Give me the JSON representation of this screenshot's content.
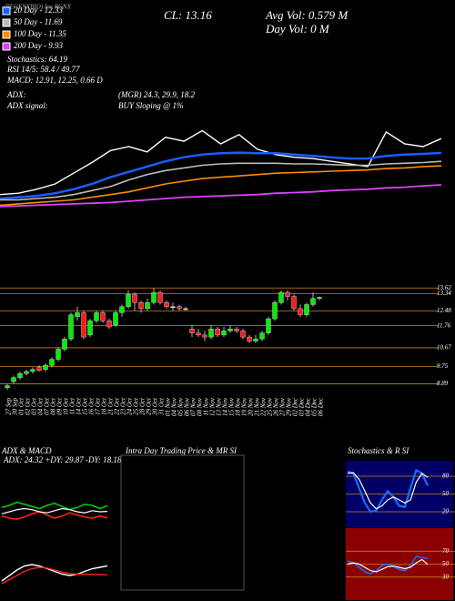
{
  "chart_data": [
    {
      "type": "line",
      "title": "(REGENXBIO) Inc RGNX",
      "annotations": [
        "CL: 13.16",
        "Avg Vol: 0.579 M",
        "Day Vol: 0  M",
        "Stochastics: 64.19",
        "RSI 14/5: 58.4 / 49.77",
        "MACD: 12.91, 12.25, 0.66  D",
        "ADX:",
        "(MGR) 24.3, 29.9, 18.2",
        "ADX signal:",
        "BUY Sloping @ 1%"
      ],
      "price_line": {
        "color": "#ffffff",
        "values": [
          9.2,
          9.3,
          9.6,
          10.0,
          10.8,
          11.6,
          12.5,
          12.8,
          12.4,
          13.5,
          13.2,
          14.0,
          13.0,
          13.7,
          12.6,
          12.2,
          12.0,
          11.9,
          11.7,
          11.5,
          11.3,
          13.9,
          13.0,
          12.8,
          13.4
        ]
      },
      "series": [
        {
          "name": "20 Day - 12.33",
          "color": "#1a5cff",
          "values": [
            8.9,
            9.0,
            9.1,
            9.3,
            9.6,
            10.0,
            10.5,
            10.9,
            11.3,
            11.7,
            12.0,
            12.2,
            12.3,
            12.35,
            12.3,
            12.3,
            12.2,
            12.1,
            12.0,
            11.9,
            11.9,
            12.1,
            12.2,
            12.25,
            12.33
          ]
        },
        {
          "name": "50 Day - 11.69",
          "color": "#bbbbbb",
          "values": [
            8.8,
            8.8,
            8.9,
            9.0,
            9.2,
            9.5,
            9.8,
            10.3,
            10.7,
            11.0,
            11.2,
            11.4,
            11.5,
            11.55,
            11.55,
            11.55,
            11.5,
            11.5,
            11.45,
            11.4,
            11.4,
            11.5,
            11.55,
            11.6,
            11.69
          ]
        },
        {
          "name": "100 Day - 11.35",
          "color": "#ff8c00",
          "values": [
            8.4,
            8.5,
            8.6,
            8.7,
            8.8,
            9.0,
            9.2,
            9.4,
            9.7,
            10.0,
            10.2,
            10.4,
            10.5,
            10.6,
            10.7,
            10.8,
            10.85,
            10.9,
            10.95,
            11.0,
            11.05,
            11.15,
            11.2,
            11.3,
            11.35
          ]
        },
        {
          "name": "200 Day - 9.93",
          "color": "#e040fb",
          "values": [
            8.3,
            8.35,
            8.4,
            8.45,
            8.5,
            8.55,
            8.6,
            8.7,
            8.8,
            8.9,
            9.0,
            9.05,
            9.1,
            9.15,
            9.2,
            9.3,
            9.35,
            9.4,
            9.5,
            9.55,
            9.6,
            9.7,
            9.75,
            9.85,
            9.93
          ]
        }
      ],
      "ylim": [
        3.3,
        23.8
      ]
    },
    {
      "type": "candlestick",
      "categories": [
        "27 Sep",
        "30 Sep",
        "01 Oct",
        "02 Oct",
        "03 Oct",
        "04 Oct",
        "07 Oct",
        "08 Oct",
        "09 Oct",
        "10 Oct",
        "11 Oct",
        "14 Oct",
        "15 Oct",
        "16 Oct",
        "17 Oct",
        "18 Oct",
        "21 Oct",
        "22 Oct",
        "23 Oct",
        "24 Oct",
        "25 Oct",
        "28 Oct",
        "29 Oct",
        "30 Oct",
        "31 Oct",
        "01 Nov",
        "04 Nov",
        "05 Nov",
        "06 Nov",
        "07 Nov",
        "08 Nov",
        "11 Nov",
        "12 Nov",
        "13 Nov",
        "14 Nov",
        "15 Nov",
        "18 Nov",
        "19 Nov",
        "20 Nov",
        "21 Nov",
        "22 Nov",
        "25 Nov",
        "26 Nov",
        "27 Nov",
        "29 Nov",
        "02 Dec",
        "03 Dec",
        "04 Dec",
        "05 Dec",
        "06 Dec"
      ],
      "open": [
        8.7,
        9.0,
        9.2,
        9.4,
        9.5,
        9.7,
        9.6,
        9.8,
        10.1,
        10.6,
        11.1,
        12.2,
        12.4,
        11.3,
        12.0,
        12.4,
        12.0,
        11.8,
        12.4,
        12.7,
        13.3,
        12.9,
        12.6,
        12.9,
        13.4,
        12.9,
        12.7,
        12.7,
        12.6,
        11.6,
        11.4,
        11.3,
        11.2,
        11.6,
        11.3,
        11.5,
        11.6,
        11.5,
        11.2,
        11.0,
        11.1,
        11.4,
        12.1,
        12.9,
        13.4,
        13.2,
        12.6,
        12.3,
        12.8,
        13.1
      ],
      "high": [
        8.9,
        9.3,
        9.5,
        9.6,
        9.7,
        9.8,
        9.9,
        10.2,
        10.7,
        11.2,
        12.4,
        12.7,
        12.5,
        12.1,
        12.5,
        12.5,
        12.1,
        12.5,
        12.8,
        13.5,
        13.4,
        13.0,
        13.1,
        13.6,
        13.5,
        13.0,
        12.9,
        12.8,
        12.7,
        11.8,
        11.6,
        11.5,
        11.8,
        11.7,
        11.7,
        11.8,
        11.7,
        11.6,
        11.3,
        11.3,
        11.5,
        12.2,
        13.0,
        13.5,
        13.5,
        13.3,
        12.8,
        12.9,
        13.4,
        13.2
      ],
      "low": [
        8.6,
        8.9,
        9.1,
        9.3,
        9.4,
        9.5,
        9.5,
        9.7,
        10.0,
        10.5,
        11.0,
        12.0,
        11.1,
        11.2,
        11.9,
        11.9,
        11.6,
        11.7,
        12.2,
        12.6,
        12.5,
        12.4,
        12.5,
        12.8,
        12.8,
        12.6,
        12.5,
        12.5,
        12.5,
        11.2,
        11.2,
        11.0,
        11.1,
        11.2,
        11.2,
        11.4,
        11.4,
        11.1,
        10.9,
        10.9,
        11.0,
        11.3,
        12.0,
        12.8,
        13.0,
        12.5,
        12.2,
        12.2,
        12.7,
        13.0
      ],
      "close": [
        8.8,
        9.2,
        9.4,
        9.5,
        9.6,
        9.55,
        9.8,
        10.1,
        10.6,
        11.1,
        12.3,
        12.4,
        11.2,
        12.0,
        12.4,
        12.0,
        11.7,
        12.4,
        12.7,
        13.3,
        12.9,
        12.6,
        12.9,
        13.4,
        12.9,
        12.7,
        12.7,
        12.6,
        12.6,
        11.4,
        11.3,
        11.2,
        11.6,
        11.3,
        11.5,
        11.6,
        11.5,
        11.2,
        11.0,
        11.1,
        11.4,
        12.1,
        12.9,
        13.4,
        13.2,
        12.6,
        12.3,
        12.8,
        13.1,
        13.16
      ],
      "up_color": "#00ee00",
      "down_color": "#ff1a1a",
      "ylim": [
        8.6,
        13.9
      ],
      "yticks": [
        13.62,
        13.34,
        12.48,
        11.76,
        10.67,
        9.75,
        8.89
      ]
    },
    {
      "type": "line",
      "title": "ADX  & MACD",
      "label": "ADX: 24.32  +DY: 29.87  -DY: 18.18",
      "series": [
        {
          "color": "#00cc00",
          "values": [
            28,
            30,
            33,
            31,
            29,
            27,
            30,
            32,
            29,
            26,
            28,
            31,
            30,
            27,
            29.87
          ]
        },
        {
          "color": "#ff2020",
          "values": [
            20,
            18,
            17,
            19,
            22,
            24,
            21,
            18,
            20,
            23,
            21,
            19,
            18,
            20,
            18.18
          ]
        },
        {
          "color": "#ffffff",
          "values": [
            22,
            24,
            26,
            27,
            26,
            24,
            23,
            25,
            27,
            26,
            24,
            23,
            25,
            24,
            24.32
          ]
        }
      ],
      "ylim": [
        0,
        60
      ]
    },
    {
      "type": "line",
      "series": [
        {
          "color": "#ffffff",
          "values": [
            11.8,
            12.2,
            12.6,
            12.9,
            13.0,
            12.9,
            12.7,
            12.5,
            12.3,
            12.2,
            12.3,
            12.5,
            12.7,
            12.8,
            12.91
          ]
        },
        {
          "color": "#ff2020",
          "values": [
            11.6,
            11.9,
            12.2,
            12.5,
            12.7,
            12.8,
            12.75,
            12.6,
            12.45,
            12.35,
            12.3,
            12.3,
            12.28,
            12.27,
            12.25
          ]
        }
      ],
      "ylim": [
        11,
        14
      ]
    },
    {
      "type": "line",
      "title": "Intra  Day Trading Price  & MR           SI"
    },
    {
      "type": "line",
      "title": "Stochastics  & R           SI",
      "background": "#000066",
      "series": [
        {
          "color": "#1a6cff",
          "values": [
            88,
            85,
            60,
            35,
            20,
            22,
            40,
            55,
            45,
            30,
            28,
            60,
            90,
            85,
            64.19
          ]
        },
        {
          "color": "#ffffff",
          "values": [
            85,
            86,
            75,
            55,
            35,
            25,
            30,
            40,
            45,
            40,
            35,
            40,
            70,
            85,
            78
          ]
        }
      ],
      "ylim": [
        0,
        100
      ],
      "yticks": [
        80,
        50,
        20
      ]
    },
    {
      "type": "line",
      "background": "#8b0000",
      "series": [
        {
          "color": "#1a6cff",
          "values": [
            55,
            52,
            45,
            38,
            35,
            40,
            48,
            50,
            46,
            42,
            40,
            48,
            62,
            60,
            58.4
          ]
        },
        {
          "color": "#ffffff",
          "values": [
            50,
            52,
            50,
            45,
            40,
            38,
            42,
            46,
            47,
            45,
            43,
            45,
            52,
            57,
            49.77
          ]
        }
      ],
      "ylim": [
        0,
        100
      ],
      "yticks": [
        70,
        50,
        30
      ]
    }
  ]
}
